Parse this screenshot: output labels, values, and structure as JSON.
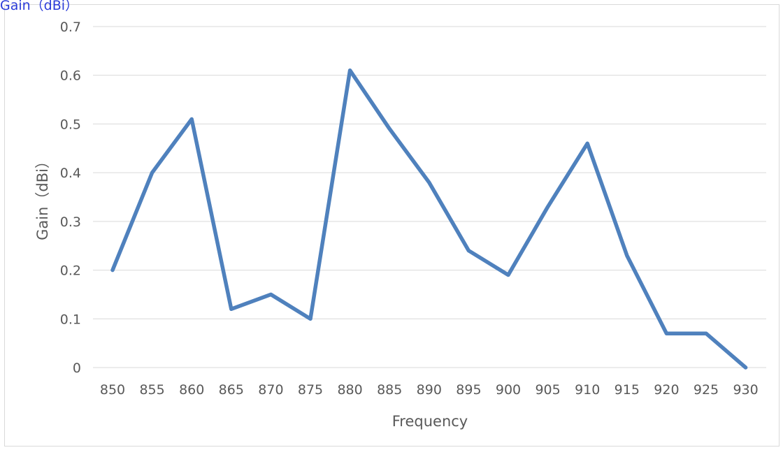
{
  "corner_label": "Gain（dBi）",
  "chart_data": {
    "type": "line",
    "xlabel": "Frequency",
    "ylabel": "Gain（dBi）",
    "ylim": [
      0,
      0.7
    ],
    "y_ticks": [
      "0",
      "0.1",
      "0.2",
      "0.3",
      "0.4",
      "0.5",
      "0.6",
      "0.7"
    ],
    "categories": [
      "850",
      "855",
      "860",
      "865",
      "870",
      "875",
      "880",
      "885",
      "890",
      "895",
      "900",
      "905",
      "910",
      "915",
      "920",
      "925",
      "930"
    ],
    "series": [
      {
        "values": [
          0.2,
          0.4,
          0.51,
          0.12,
          0.15,
          0.1,
          0.61,
          0.49,
          0.38,
          0.24,
          0.19,
          0.33,
          0.46,
          0.23,
          0.07,
          0.07,
          0.0
        ],
        "color": "#4f81bd"
      }
    ],
    "grid": true,
    "gridline_color": "#d9d9d9",
    "legend": "none"
  }
}
